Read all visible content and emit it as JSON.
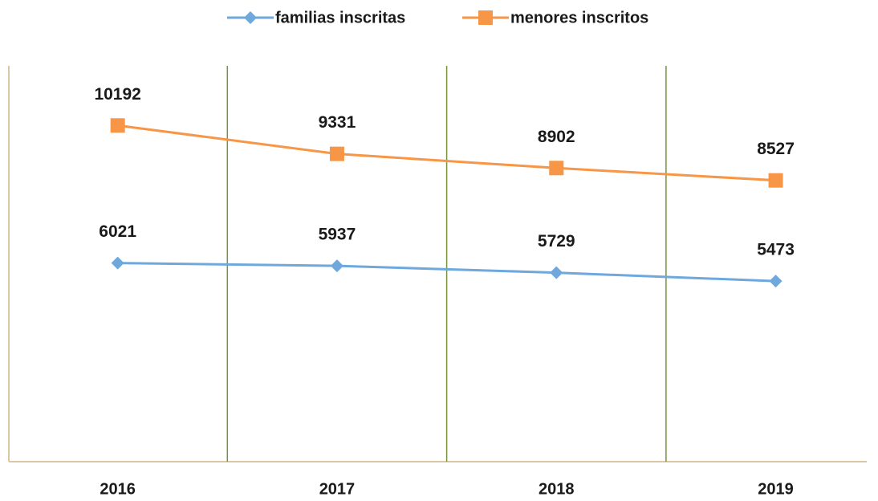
{
  "chart_data": {
    "type": "line",
    "categories": [
      "2016",
      "2017",
      "2018",
      "2019"
    ],
    "series": [
      {
        "name": "familias inscritas",
        "color": "#6fa8dc",
        "marker": "diamond",
        "values": [
          6021,
          5937,
          5729,
          5473
        ]
      },
      {
        "name": "menores inscritos",
        "color": "#f79646",
        "marker": "square",
        "values": [
          10192,
          9331,
          8902,
          8527
        ]
      }
    ],
    "ylim": [
      0,
      12000
    ],
    "legend": "top"
  }
}
